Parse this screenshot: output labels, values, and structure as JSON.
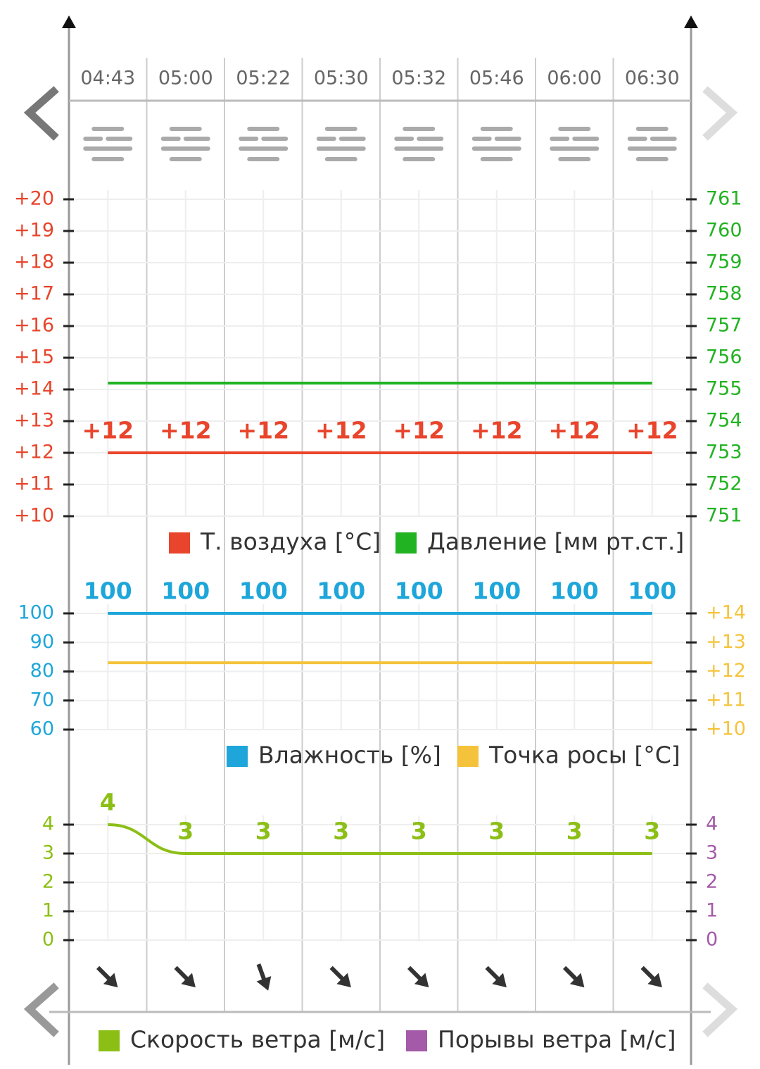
{
  "chart_data": [
    {
      "type": "line",
      "categories": [
        "04:43",
        "05:00",
        "05:22",
        "05:30",
        "05:32",
        "05:46",
        "06:00",
        "06:30"
      ],
      "ylim": [
        10,
        20
      ],
      "yticks": [
        {
          "value": 10,
          "label": "+10"
        },
        {
          "value": 11,
          "label": "+11"
        },
        {
          "value": 12,
          "label": "+12"
        },
        {
          "value": 13,
          "label": "+13"
        },
        {
          "value": 14,
          "label": "+14"
        },
        {
          "value": 15,
          "label": "+15"
        },
        {
          "value": 16,
          "label": "+16"
        },
        {
          "value": 17,
          "label": "+17"
        },
        {
          "value": 18,
          "label": "+18"
        },
        {
          "value": 19,
          "label": "+19"
        },
        {
          "value": 20,
          "label": "+20"
        }
      ],
      "y2lim": [
        751,
        761
      ],
      "y2ticks": [
        751,
        752,
        753,
        754,
        755,
        756,
        757,
        758,
        759,
        760,
        761
      ],
      "series": [
        {
          "name": "Т. воздуха [°C]",
          "color": "#e8452c",
          "values": [
            12,
            12,
            12,
            12,
            12,
            12,
            12,
            12
          ],
          "value_labels": [
            "+12",
            "+12",
            "+12",
            "+12",
            "+12",
            "+12",
            "+12",
            "+12"
          ]
        },
        {
          "name": "Давление [мм рт.ст.]",
          "color": "#22b322",
          "axis": "y2",
          "values": [
            755.2,
            755.2,
            755.2,
            755.2,
            755.2,
            755.2,
            755.2,
            755.2
          ]
        }
      ]
    },
    {
      "type": "line",
      "ylim": [
        60,
        100
      ],
      "yticks": [
        60,
        70,
        80,
        90,
        100
      ],
      "y2lim": [
        10,
        14
      ],
      "y2ticks": [
        {
          "value": 10,
          "label": "+10"
        },
        {
          "value": 11,
          "label": "+11"
        },
        {
          "value": 12,
          "label": "+12"
        },
        {
          "value": 13,
          "label": "+13"
        },
        {
          "value": 14,
          "label": "+14"
        }
      ],
      "series": [
        {
          "name": "Влажность [%]",
          "color": "#1ea6da",
          "values": [
            100,
            100,
            100,
            100,
            100,
            100,
            100,
            100
          ],
          "labels_shown": true
        },
        {
          "name": "Точка росы [°C]",
          "color": "#f5c33b",
          "axis": "y2",
          "values": [
            12.3,
            12.3,
            12.3,
            12.3,
            12.3,
            12.3,
            12.3,
            12.3
          ]
        }
      ]
    },
    {
      "type": "line",
      "ylim": [
        0,
        4
      ],
      "yticks": [
        0,
        1,
        2,
        3,
        4
      ],
      "y2lim": [
        0,
        4
      ],
      "y2ticks": [
        0,
        1,
        2,
        3,
        4
      ],
      "series": [
        {
          "name": "Скорость ветра [м/с]",
          "color": "#8cbf16",
          "values": [
            4,
            3,
            3,
            3,
            3,
            3,
            3,
            3
          ],
          "labels_shown": true
        },
        {
          "name": "Порывы ветра [м/с]",
          "color": "#a45aa8",
          "axis": "y2"
        }
      ]
    }
  ]
}
